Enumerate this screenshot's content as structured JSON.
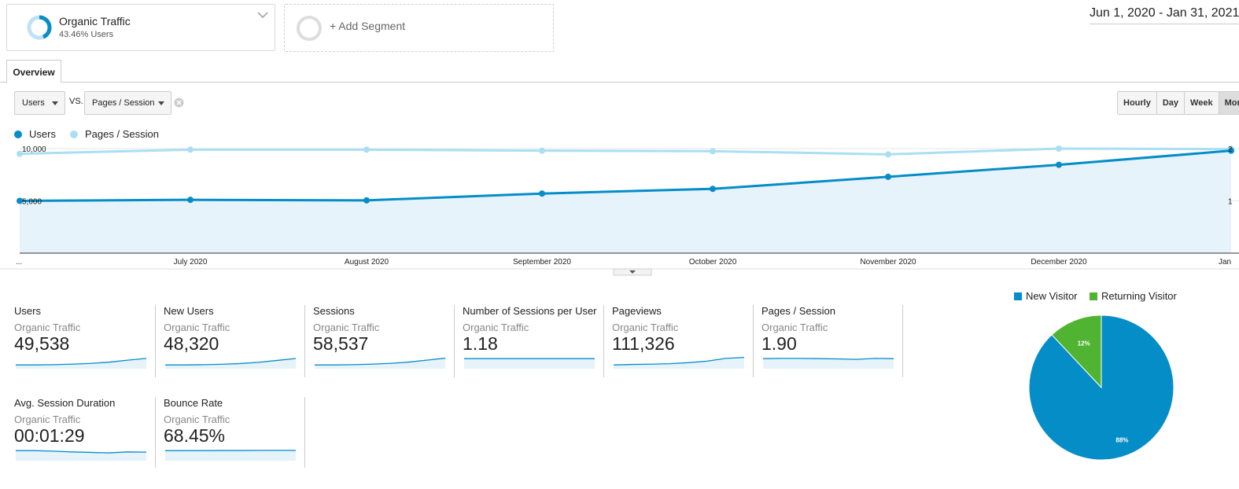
{
  "segments": {
    "active": {
      "name": "Organic Traffic",
      "percent": "43.46% Users"
    },
    "add_label": "+ Add Segment"
  },
  "date_range": "Jun 1, 2020 - Jan 31, 2021",
  "tabs": {
    "overview": "Overview"
  },
  "controls": {
    "metric1": "Users",
    "vs": "VS.",
    "metric2": "Pages / Session",
    "granularity": [
      "Hourly",
      "Day",
      "Week",
      "Month"
    ],
    "selected_granularity": "Month"
  },
  "legend": [
    {
      "name": "Users",
      "color": "#058dc7"
    },
    {
      "name": "Pages / Session",
      "color": "#aadff3"
    }
  ],
  "chart_data": {
    "type": "line",
    "x": [
      "...",
      "July 2020",
      "August 2020",
      "September 2020",
      "October 2020",
      "November 2020",
      "December 2020",
      "Jan"
    ],
    "y_left_ticks": [
      "10,000",
      "5,000"
    ],
    "y_right_ticks": [
      "2",
      "1"
    ],
    "series": [
      {
        "name": "Users",
        "color": "#058dc7",
        "values": [
          5000,
          5100,
          5050,
          5700,
          6150,
          7300,
          8450,
          9800
        ]
      },
      {
        "name": "Pages / Session",
        "color": "#aadff3",
        "values": [
          1.9,
          1.98,
          1.98,
          1.96,
          1.95,
          1.89,
          2.0,
          1.99
        ]
      }
    ],
    "ylim_left": [
      0,
      10000
    ],
    "ylim_right": [
      0,
      2
    ]
  },
  "metrics": [
    {
      "label": "Users",
      "segment": "Organic Traffic",
      "value": "49,538",
      "spark": [
        3,
        3,
        3.2,
        3.6,
        4.2,
        5.2,
        6.8,
        8.2
      ]
    },
    {
      "label": "New Users",
      "segment": "Organic Traffic",
      "value": "48,320",
      "spark": [
        3,
        3,
        3.2,
        3.5,
        4.1,
        5.1,
        6.6,
        8.1
      ]
    },
    {
      "label": "Sessions",
      "segment": "Organic Traffic",
      "value": "58,537",
      "spark": [
        3,
        3,
        3.2,
        3.6,
        4.2,
        5.2,
        6.8,
        8.4
      ]
    },
    {
      "label": "Number of Sessions per User",
      "segment": "Organic Traffic",
      "value": "1.18",
      "spark": [
        8,
        8,
        8,
        8,
        8,
        8,
        8,
        8
      ]
    },
    {
      "label": "Pageviews",
      "segment": "Organic Traffic",
      "value": "111,326",
      "spark": [
        3,
        3.4,
        3.6,
        4,
        4.8,
        6,
        8.2,
        9
      ]
    },
    {
      "label": "Pages / Session",
      "segment": "Organic Traffic",
      "value": "1.90",
      "spark": [
        8,
        8.2,
        8.2,
        8,
        7.8,
        7.4,
        8.2,
        8
      ]
    },
    {
      "label": "Avg. Session Duration",
      "segment": "Organic Traffic",
      "value": "00:01:29",
      "spark": [
        8,
        8,
        7.6,
        7,
        6.6,
        6.2,
        7,
        6.8
      ]
    },
    {
      "label": "Bounce Rate",
      "segment": "Organic Traffic",
      "value": "68.45%",
      "spark": [
        8,
        8,
        8,
        8.1,
        8.1,
        8.2,
        8.2,
        8.2
      ]
    }
  ],
  "pie": {
    "legend": [
      {
        "name": "New Visitor",
        "color": "#058dc7"
      },
      {
        "name": "Returning Visitor",
        "color": "#50b432"
      }
    ],
    "chart_data": {
      "type": "pie",
      "labels": [
        "New Visitor",
        "Returning Visitor"
      ],
      "values": [
        88,
        12
      ],
      "display": [
        "88%",
        "12%"
      ]
    }
  }
}
